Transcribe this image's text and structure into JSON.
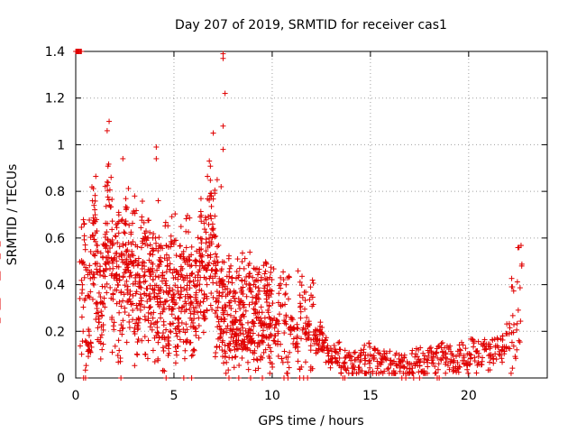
{
  "chart_data": {
    "type": "scatter",
    "title": "Day 207 of 2019, SRMTID for receiver cas1",
    "xlabel": "GPS time / hours",
    "ylabel": "SRMTID / TECUs",
    "xlim": [
      0,
      24
    ],
    "ylim": [
      0,
      1.4
    ],
    "xticks": [
      0,
      5,
      10,
      15,
      20
    ],
    "xtick_labels": [
      "0",
      "5",
      "10",
      "15",
      "20"
    ],
    "yticks": [
      0,
      0.2,
      0.4,
      0.6,
      0.8,
      1,
      1.2,
      1.4
    ],
    "ytick_labels": [
      "0",
      "0.2",
      "0.4",
      "0.6",
      "0.8",
      "1",
      "1.2",
      "1.4"
    ],
    "grid": true,
    "marker": "+",
    "color": "#e00000",
    "series": [
      {
        "name": "SRMTID",
        "x": [
          0.1,
          0.2,
          0.3,
          0.4,
          0.6,
          0.7,
          0.8,
          0.9,
          1.0,
          1.1,
          1.2,
          1.3,
          1.4,
          1.5,
          1.6,
          1.7,
          1.8,
          1.9,
          2.0,
          2.1,
          2.2,
          2.3,
          2.4,
          2.5,
          2.6,
          2.7,
          2.8,
          2.9,
          3.0,
          3.1,
          3.2,
          3.3,
          3.4,
          3.5,
          3.6,
          3.7,
          3.8,
          3.9,
          4.0,
          4.1,
          4.2,
          4.3,
          4.4,
          4.5,
          4.6,
          4.7,
          4.8,
          4.9,
          5.0,
          5.1,
          5.2,
          5.3,
          5.4,
          5.5,
          5.6,
          5.7,
          5.8,
          5.9,
          6.0,
          6.1,
          6.2,
          6.3,
          6.4,
          6.5,
          6.6,
          6.7,
          6.8,
          6.9,
          7.0,
          7.1,
          7.2,
          7.3,
          7.4,
          7.5,
          7.6,
          7.7,
          7.8,
          7.9,
          8.0,
          8.1,
          8.2,
          8.3,
          8.4,
          8.5,
          8.6,
          8.7,
          8.8,
          8.9,
          9.0,
          9.1,
          9.2,
          9.3,
          9.4,
          9.5,
          9.6,
          9.7,
          9.8,
          9.9,
          10.0,
          10.2,
          10.4,
          10.6,
          10.8,
          11.0,
          11.2,
          11.4,
          11.6,
          11.8,
          12.0,
          12.2,
          12.4,
          12.6,
          12.8,
          13.0,
          13.2,
          13.4,
          13.6,
          13.8,
          14.0,
          14.2,
          14.4,
          14.6,
          14.8,
          15.0,
          15.2,
          15.4,
          15.6,
          15.8,
          16.0,
          16.2,
          16.4,
          16.6,
          16.8,
          17.0,
          17.2,
          17.4,
          17.6,
          17.8,
          18.0,
          18.2,
          18.4,
          18.6,
          18.8,
          19.0,
          19.2,
          19.4,
          19.6,
          19.8,
          20.0,
          20.2,
          20.4,
          20.6,
          20.8,
          21.0,
          21.2,
          21.4,
          21.6,
          21.8,
          22.0,
          22.2,
          22.4,
          22.6,
          22.7,
          22.8,
          0.3,
          0.5,
          0.25,
          0.15,
          0.55,
          0.6,
          0.65,
          0.45,
          0.35,
          0.3,
          0.4,
          0.5,
          0.62,
          0.7,
          0.55,
          0.3,
          0.42,
          0.58,
          0.28,
          0.35,
          0.48,
          0.52,
          0.6,
          0.33,
          0.44,
          0.38,
          0.5,
          0.27,
          0.42,
          0.36,
          0.55,
          0.48,
          0.3,
          0.5,
          0.4,
          0.33,
          0.45,
          0.26,
          0.38,
          0.52,
          0.3,
          0.22,
          0.45,
          0.35,
          0.28,
          0.4,
          0.5,
          0.32,
          0.25,
          0.38,
          0.44,
          0.3,
          0.36,
          0.5,
          0.42,
          0.3,
          0.28,
          0.4,
          0.35,
          0.5,
          0.6,
          0.45,
          0.38,
          0.55,
          0.7,
          0.48,
          0.6,
          0.4,
          0.3,
          0.35,
          0.25,
          0.32,
          0.28,
          0.22,
          0.3,
          0.35,
          0.25,
          0.2,
          0.3,
          0.28,
          0.22,
          0.35,
          0.3,
          0.18,
          0.25,
          0.32,
          0.2,
          0.28,
          0.24,
          0.3,
          0.26,
          0.2,
          0.28,
          0.32,
          0.22,
          0.3,
          0.26,
          0.2,
          0.25,
          0.28,
          0.22,
          0.2,
          0.18,
          0.24,
          0.26,
          0.2,
          0.22,
          0.15,
          0.18,
          0.16,
          0.12,
          0.1,
          0.08,
          0.1,
          0.06,
          0.08,
          0.05,
          0.07,
          0.06,
          0.08,
          0.05,
          0.09,
          0.07,
          0.06,
          0.05,
          0.08,
          0.06,
          0.04,
          0.05,
          0.07,
          0.05,
          0.04,
          0.06,
          0.08,
          0.07,
          0.05,
          0.09,
          0.06,
          0.08,
          0.1,
          0.07,
          0.09,
          0.06,
          0.08,
          0.1,
          0.09,
          0.07,
          0.11,
          0.08,
          0.1,
          0.12,
          0.09,
          0.11,
          0.13,
          0.12,
          0.15,
          0.18,
          0.22,
          0.28,
          0.35,
          0.42
        ],
        "y_note": "values estimated from plot"
      }
    ],
    "extra_points": [
      {
        "x": 1.6,
        "y": 1.06
      },
      {
        "x": 1.7,
        "y": 1.1
      },
      {
        "x": 1.6,
        "y": 0.84
      },
      {
        "x": 2.4,
        "y": 0.94
      },
      {
        "x": 4.1,
        "y": 0.99
      },
      {
        "x": 4.1,
        "y": 0.94
      },
      {
        "x": 6.8,
        "y": 0.93
      },
      {
        "x": 7.0,
        "y": 1.05
      },
      {
        "x": 7.5,
        "y": 1.37
      },
      {
        "x": 7.5,
        "y": 1.39
      },
      {
        "x": 7.6,
        "y": 1.22
      },
      {
        "x": 7.5,
        "y": 1.08
      },
      {
        "x": 7.5,
        "y": 0.98
      },
      {
        "x": 7.2,
        "y": 0.85
      },
      {
        "x": 7.4,
        "y": 0.82
      },
      {
        "x": 6.9,
        "y": 0.78
      },
      {
        "x": 4.2,
        "y": 0.76
      },
      {
        "x": 3.0,
        "y": 0.78
      },
      {
        "x": 1.8,
        "y": 0.86
      },
      {
        "x": 22.7,
        "y": 0.48
      }
    ],
    "zero_points_x": [
      0.4,
      0.5,
      2.3,
      4.6,
      5.5,
      5.9,
      7.8,
      8.3,
      8.9,
      9.5,
      10.6,
      10.8,
      11.4,
      11.6,
      11.8,
      13.6,
      13.7,
      16.6,
      16.8,
      17.2,
      17.5,
      18.4,
      18.5
    ]
  }
}
